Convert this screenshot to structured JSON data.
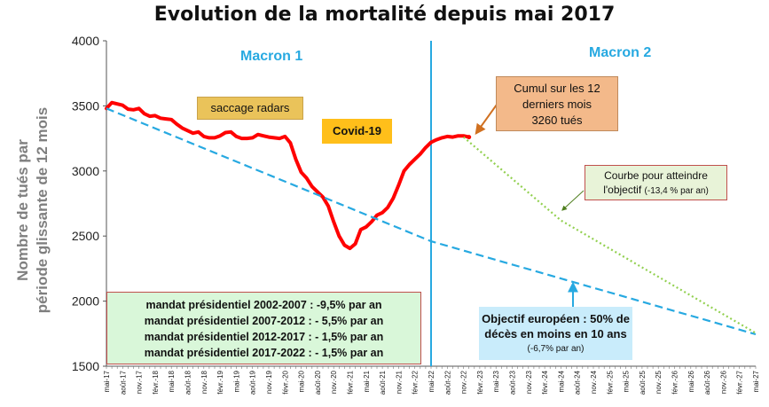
{
  "title": "Evolution de la mortalité depuis mai 2017",
  "ylabel_line1": "Nombre de tués par",
  "ylabel_line2": "période  glissante de 12 mois",
  "colors": {
    "actual": "#ff0000",
    "objective": "#27a9e1",
    "target_curve": "#92d050",
    "divider": "#27a9e1",
    "arrow_cumul": "#d07020",
    "arrow_objectif": "#27a9e1"
  },
  "annotations": {
    "macron1": "Macron 1",
    "macron2": "Macron 2",
    "saccage": "saccage radars",
    "covid": "Covid-19",
    "cumul_line1": "Cumul sur les 12",
    "cumul_line2": "derniers mois",
    "cumul_line3": "3260 tués",
    "courbe_line1": "Courbe   pour atteindre",
    "courbe_line2": "l'objectif",
    "courbe_small": "(-13,4 % par an)",
    "mandat1": "mandat présidentiel 2002-2007 : -9,5% par an",
    "mandat2": "mandat présidentiel 2007-2012 : - 5,5% par an",
    "mandat3": "mandat présidentiel 2012-2017 : - 1,5% par an",
    "mandat4": "mandat présidentiel 2017-2022 : - 1,5% par an",
    "objectif_line1": "Objectif européen : 50% de",
    "objectif_line2": "décès en moins en 10 ans",
    "objectif_small": "(-6,7% par an)"
  },
  "chart_data": {
    "type": "line",
    "title": "Evolution de la mortalité depuis mai 2017",
    "xlabel": "",
    "ylabel": "Nombre de tués par période  glissante de 12 mois",
    "ylim": [
      1500,
      4000
    ],
    "yticks": [
      1500,
      2000,
      2500,
      3000,
      3500,
      4000
    ],
    "grid": false,
    "x_tick_labels": [
      "mai-17",
      "août-17",
      "nov.-17",
      "févr.-18",
      "mai-18",
      "août-18",
      "nov.-18",
      "févr.-19",
      "mai-19",
      "août-19",
      "nov.-19",
      "févr.-20",
      "mai-20",
      "août-20",
      "nov.-20",
      "févr.-21",
      "mai-21",
      "août-21",
      "nov.-21",
      "févr.-22",
      "mai-22",
      "août-22",
      "nov.-22",
      "févr.-23",
      "mai-23",
      "août-23",
      "nov.-23",
      "févr.-24",
      "mai-24",
      "août-24",
      "nov.-24",
      "févr.-25",
      "mai-25",
      "août-25",
      "nov.-25",
      "févr.-26",
      "mai-26",
      "août-26",
      "nov.-26",
      "févr.-27",
      "mai-27"
    ],
    "divider_at": "mai-22",
    "series": [
      {
        "kind": "actual",
        "style": "solid-thick",
        "points": [
          [
            "mai-17",
            3480
          ],
          [
            "juin-17",
            3525
          ],
          [
            "juil.-17",
            3515
          ],
          [
            "août-17",
            3505
          ],
          [
            "sept.-17",
            3475
          ],
          [
            "oct.-17",
            3470
          ],
          [
            "nov.-17",
            3480
          ],
          [
            "déc.-17",
            3440
          ],
          [
            "janv.-18",
            3420
          ],
          [
            "févr.-18",
            3425
          ],
          [
            "mars-18",
            3405
          ],
          [
            "avr.-18",
            3400
          ],
          [
            "mai-18",
            3395
          ],
          [
            "juin-18",
            3360
          ],
          [
            "juil.-18",
            3330
          ],
          [
            "août-18",
            3310
          ],
          [
            "sept.-18",
            3290
          ],
          [
            "oct.-18",
            3300
          ],
          [
            "nov.-18",
            3265
          ],
          [
            "déc.-18",
            3255
          ],
          [
            "janv.-19",
            3255
          ],
          [
            "févr.-19",
            3270
          ],
          [
            "mars-19",
            3295
          ],
          [
            "avr.-19",
            3300
          ],
          [
            "mai-19",
            3265
          ],
          [
            "juin-19",
            3250
          ],
          [
            "juil.-19",
            3250
          ],
          [
            "août-19",
            3255
          ],
          [
            "sept.-19",
            3280
          ],
          [
            "oct.-19",
            3270
          ],
          [
            "nov.-19",
            3260
          ],
          [
            "déc.-19",
            3255
          ],
          [
            "janv.-20",
            3250
          ],
          [
            "févr.-20",
            3265
          ],
          [
            "mars-20",
            3215
          ],
          [
            "avr.-20",
            3090
          ],
          [
            "mai-20",
            2990
          ],
          [
            "juin-20",
            2945
          ],
          [
            "juil.-20",
            2880
          ],
          [
            "août-20",
            2840
          ],
          [
            "sept.-20",
            2800
          ],
          [
            "oct.-20",
            2730
          ],
          [
            "nov.-20",
            2610
          ],
          [
            "déc.-20",
            2500
          ],
          [
            "janv.-21",
            2430
          ],
          [
            "févr.-21",
            2405
          ],
          [
            "mars-21",
            2440
          ],
          [
            "avr.-21",
            2550
          ],
          [
            "mai-21",
            2570
          ],
          [
            "juin-21",
            2610
          ],
          [
            "juil.-21",
            2660
          ],
          [
            "août-21",
            2680
          ],
          [
            "sept.-21",
            2720
          ],
          [
            "oct.-21",
            2790
          ],
          [
            "nov.-21",
            2890
          ],
          [
            "déc.-21",
            3000
          ],
          [
            "janv.-22",
            3050
          ],
          [
            "févr.-22",
            3090
          ],
          [
            "mars-22",
            3130
          ],
          [
            "avr.-22",
            3180
          ],
          [
            "mai-22",
            3220
          ],
          [
            "juin-22",
            3240
          ],
          [
            "juil.-22",
            3255
          ],
          [
            "août-22",
            3265
          ],
          [
            "sept.-22",
            3260
          ],
          [
            "oct.-22",
            3270
          ],
          [
            "nov.-22",
            3270
          ],
          [
            "déc.-22",
            3260
          ]
        ]
      },
      {
        "kind": "objective",
        "style": "dashed",
        "points": [
          [
            "mai-17",
            3480
          ],
          [
            "mai-22",
            2460
          ],
          [
            "mai-27",
            1745
          ]
        ]
      },
      {
        "kind": "target_curve",
        "style": "dotted",
        "points": [
          [
            "nov.-22",
            3260
          ],
          [
            "mai-24",
            2620
          ],
          [
            "mai-27",
            1755
          ]
        ]
      }
    ]
  }
}
